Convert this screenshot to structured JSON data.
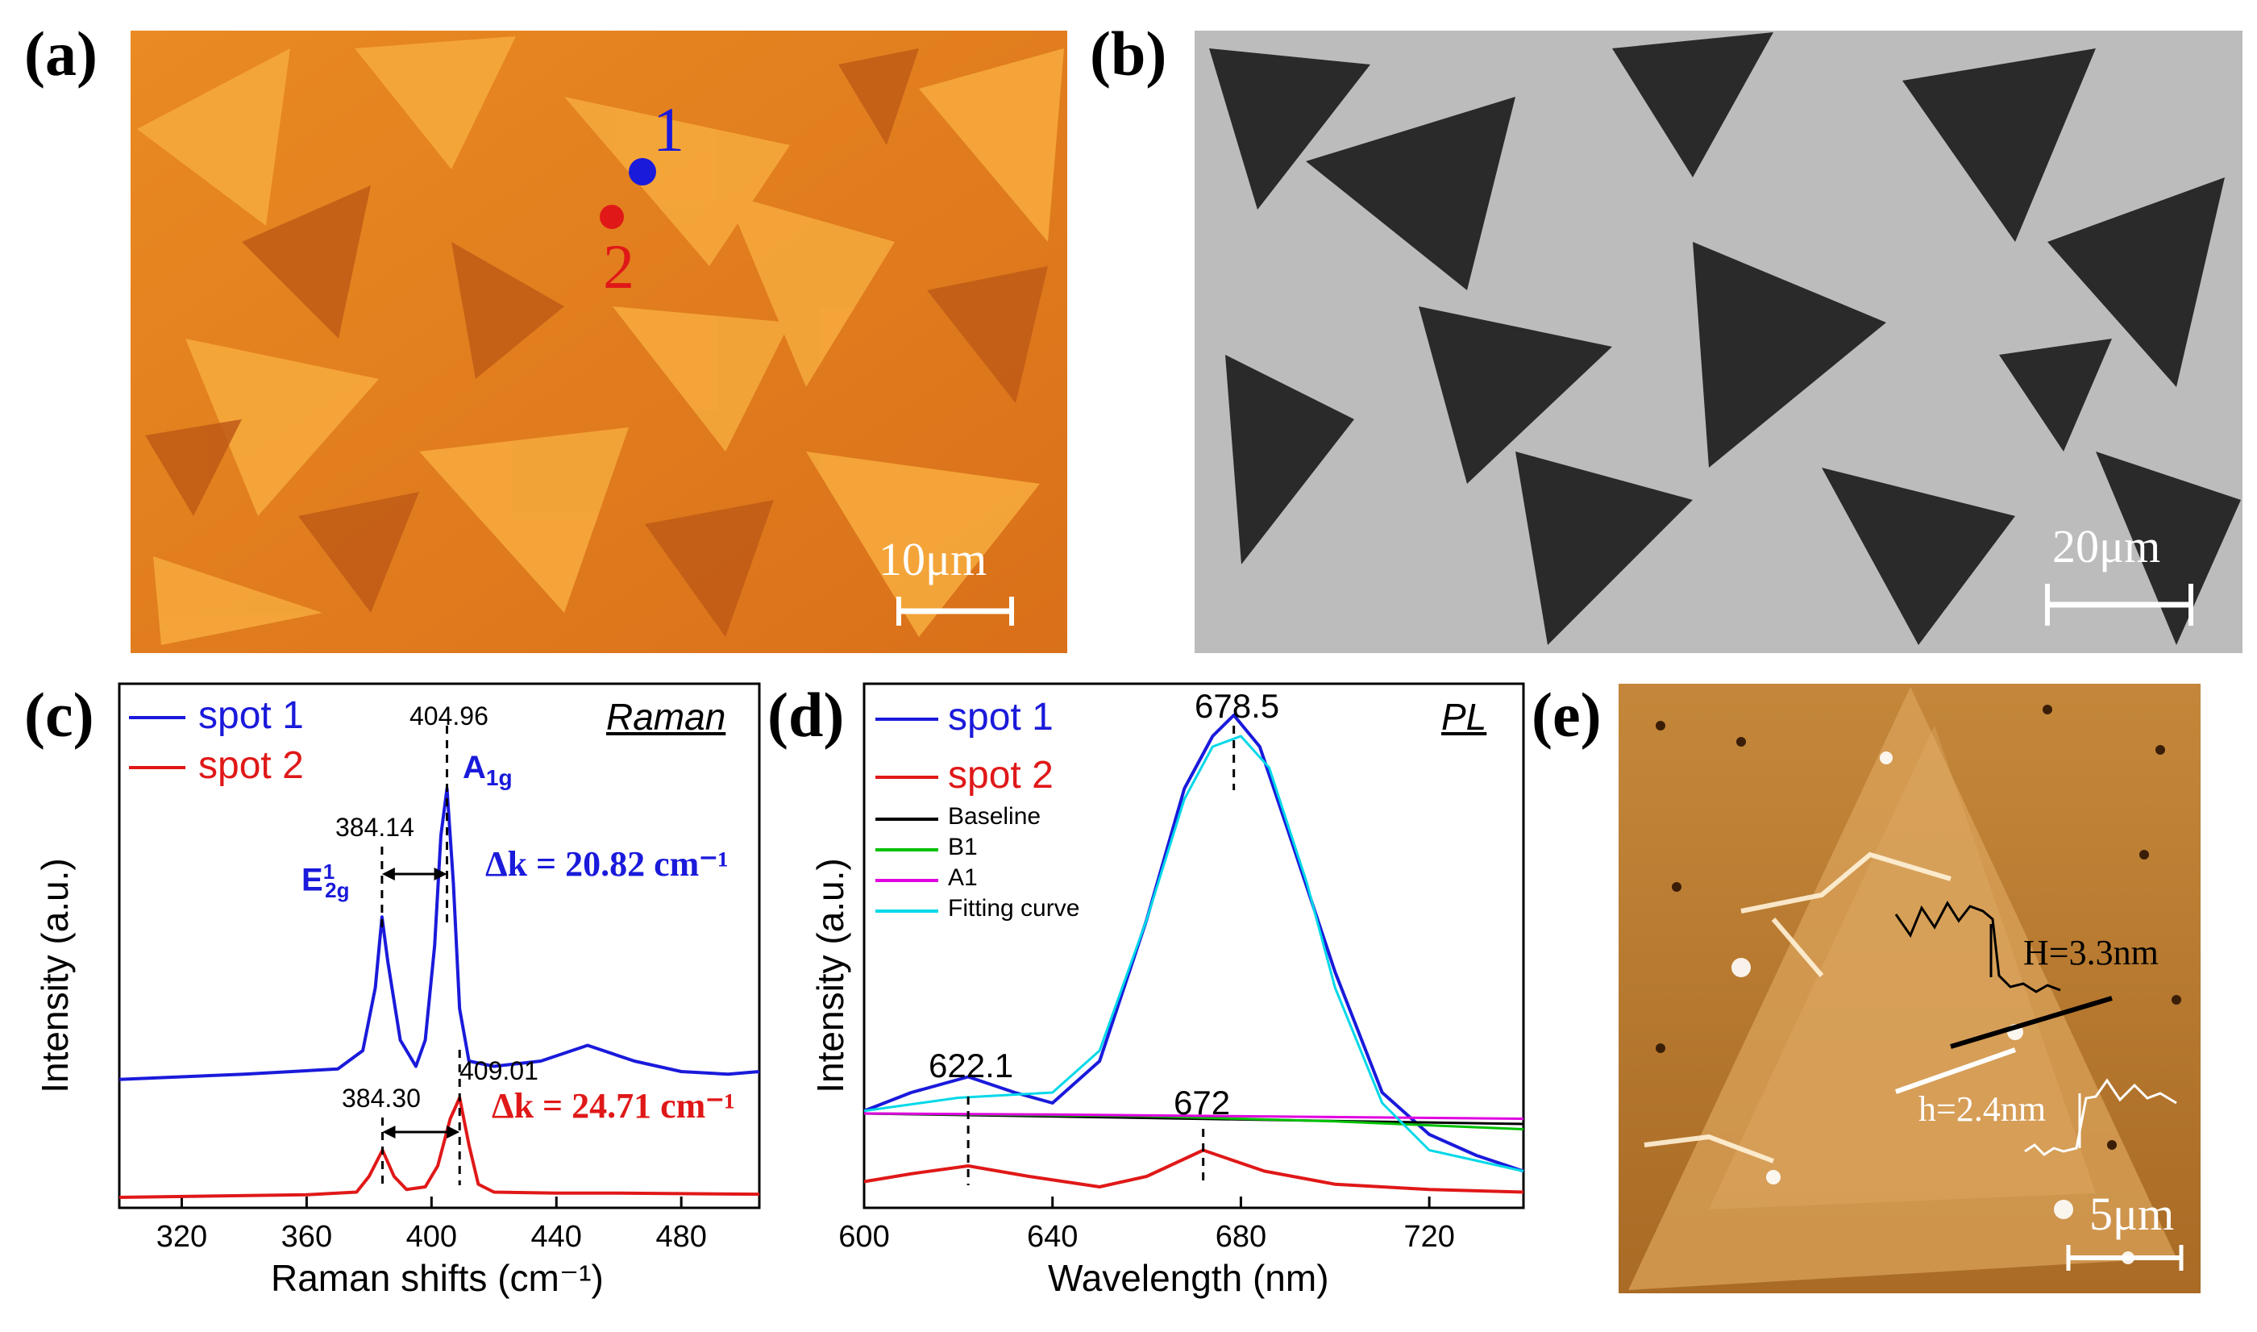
{
  "panels": {
    "a": {
      "label": "(a)",
      "scale_bar": "10μm",
      "spot1_label": "1",
      "spot2_label": "2"
    },
    "b": {
      "label": "(b)",
      "scale_bar": "20μm"
    },
    "c": {
      "label": "(c)"
    },
    "d": {
      "label": "(d)"
    },
    "e": {
      "label": "(e)",
      "scale_bar": "5μm",
      "height_big": "H=3.3nm",
      "height_small": "h=2.4nm"
    }
  },
  "colors": {
    "spot1": "#1a1adb",
    "spot2": "#e01818",
    "baseline": "#000000",
    "b1": "#00c000",
    "a1": "#e000e0",
    "fit": "#00d8e8",
    "optical": "#e88a22",
    "sem": "#bdbdbd",
    "afm": "#b77b2c"
  },
  "chart_data": [
    {
      "type": "line",
      "panel": "c",
      "title": "Raman",
      "xlabel": "Raman shifts (cm⁻¹)",
      "ylabel": "Intensity (a.u.)",
      "xlim": [
        300,
        505
      ],
      "xticks": [
        320,
        360,
        400,
        440,
        480
      ],
      "ylim": [
        0,
        1
      ],
      "legend": [
        "spot 1",
        "spot 2"
      ],
      "series": [
        {
          "name": "spot 1",
          "x": [
            300,
            340,
            370,
            378,
            382,
            384.14,
            386,
            390,
            395,
            398,
            401,
            403,
            404.96,
            407,
            409,
            412,
            420,
            435,
            450,
            465,
            480,
            495,
            505
          ],
          "values": [
            0.245,
            0.255,
            0.265,
            0.3,
            0.42,
            0.555,
            0.47,
            0.32,
            0.27,
            0.32,
            0.5,
            0.71,
            0.8,
            0.62,
            0.38,
            0.28,
            0.27,
            0.28,
            0.31,
            0.28,
            0.26,
            0.255,
            0.26
          ]
        },
        {
          "name": "spot 2",
          "x": [
            300,
            360,
            376,
            380,
            384.3,
            388,
            392,
            398,
            402,
            406,
            409.01,
            412,
            415,
            420,
            440,
            460,
            505
          ],
          "values": [
            0.02,
            0.025,
            0.03,
            0.06,
            0.11,
            0.06,
            0.035,
            0.04,
            0.08,
            0.17,
            0.21,
            0.12,
            0.045,
            0.03,
            0.028,
            0.028,
            0.026
          ]
        }
      ],
      "annotations": {
        "peak1": "404.96",
        "peak2": "384.14",
        "peak3": "409.01",
        "peak4": "384.30",
        "mode_a": "A",
        "mode_a_sub": "1g",
        "mode_e": "E",
        "mode_e_sup": "1",
        "mode_e_sub": "2g",
        "delta1": "Δk = 20.82 cm⁻¹",
        "delta2": "Δk = 24.71 cm⁻¹"
      }
    },
    {
      "type": "line",
      "panel": "d",
      "title": "PL",
      "xlabel": "Wavelength (nm)",
      "ylabel": "Intensity (a.u.)",
      "xlim": [
        600,
        740
      ],
      "xticks": [
        600,
        640,
        680,
        720
      ],
      "ylim": [
        0,
        1
      ],
      "legend": [
        "spot 1",
        "spot 2",
        "Baseline",
        "B1",
        "A1",
        "Fitting curve"
      ],
      "series": [
        {
          "name": "spot 1",
          "x": [
            600,
            610,
            622.1,
            632,
            640,
            650,
            660,
            668,
            674,
            678.5,
            684,
            690,
            700,
            710,
            720,
            730,
            740
          ],
          "values": [
            0.185,
            0.22,
            0.25,
            0.22,
            0.2,
            0.28,
            0.55,
            0.8,
            0.9,
            0.94,
            0.88,
            0.72,
            0.45,
            0.22,
            0.14,
            0.1,
            0.07
          ]
        },
        {
          "name": "spot 2",
          "x": [
            600,
            610,
            622.1,
            635,
            650,
            660,
            672,
            685,
            700,
            720,
            740
          ],
          "values": [
            0.05,
            0.065,
            0.08,
            0.06,
            0.04,
            0.06,
            0.11,
            0.07,
            0.045,
            0.035,
            0.03
          ]
        },
        {
          "name": "Baseline",
          "x": [
            600,
            740
          ],
          "values": [
            0.18,
            0.16
          ]
        },
        {
          "name": "B1",
          "x": [
            600,
            660,
            700,
            740
          ],
          "values": [
            0.18,
            0.175,
            0.165,
            0.15
          ]
        },
        {
          "name": "A1",
          "x": [
            600,
            640,
            740
          ],
          "values": [
            0.18,
            0.178,
            0.17
          ]
        },
        {
          "name": "Fitting curve",
          "x": [
            600,
            620,
            640,
            650,
            660,
            668,
            674,
            680,
            686,
            694,
            700,
            710,
            720,
            740
          ],
          "values": [
            0.185,
            0.21,
            0.22,
            0.3,
            0.55,
            0.78,
            0.88,
            0.9,
            0.84,
            0.62,
            0.42,
            0.2,
            0.11,
            0.07
          ]
        }
      ],
      "annotations": {
        "peak1": "678.5",
        "peak2": "622.1",
        "peak3": "672"
      }
    }
  ]
}
